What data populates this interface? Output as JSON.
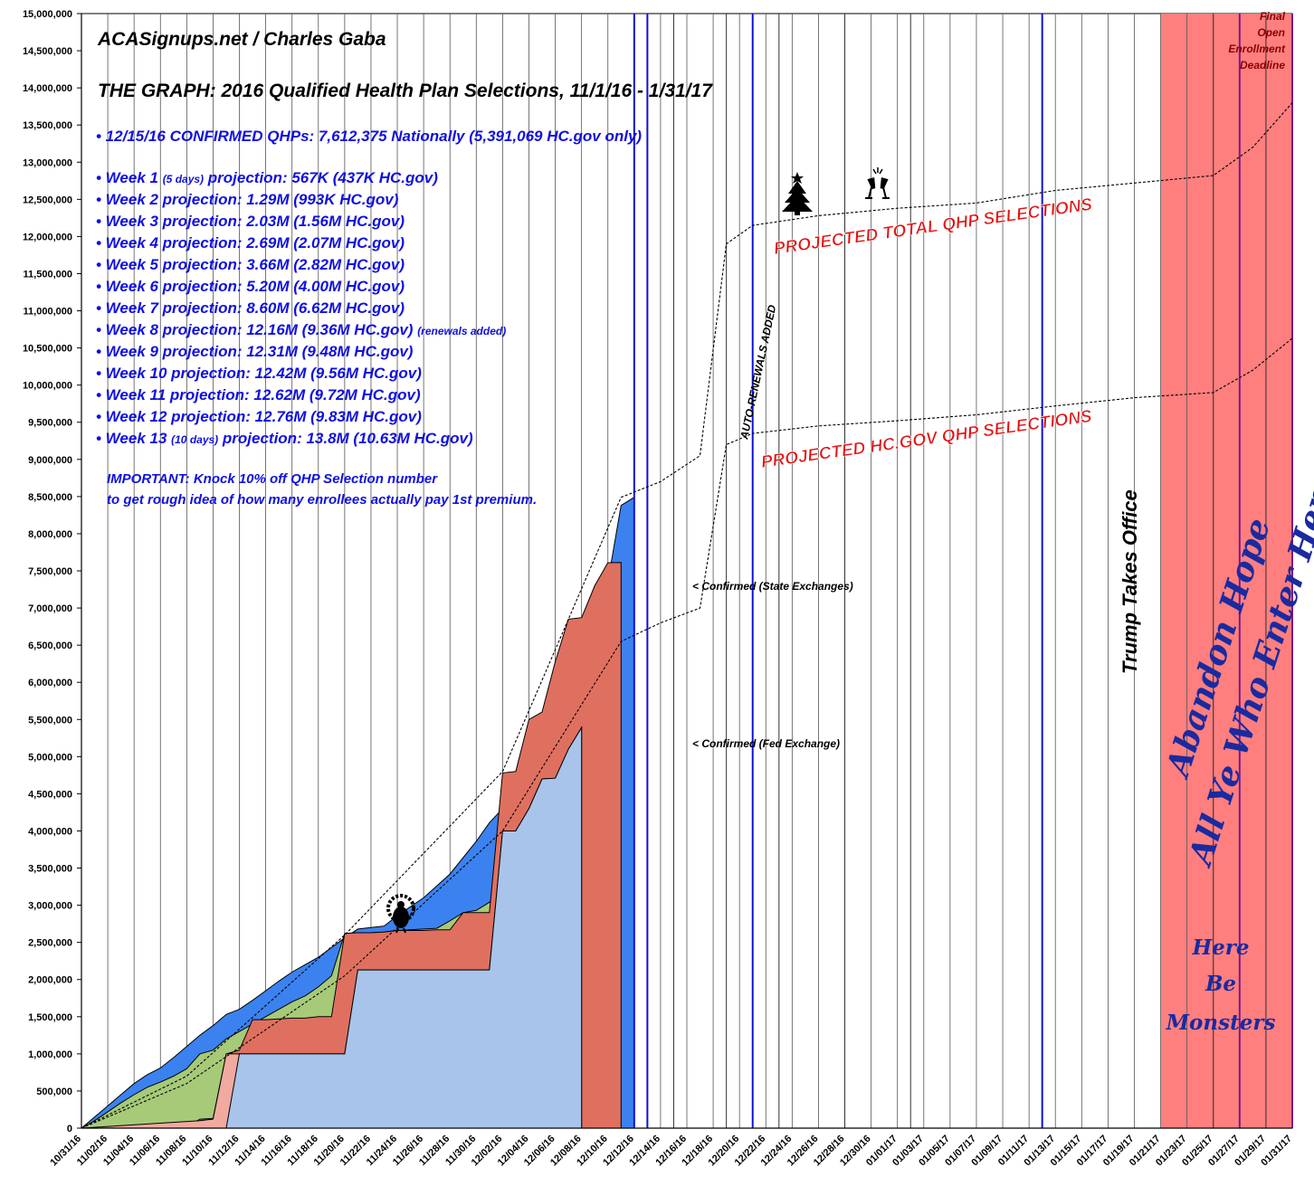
{
  "texts": {
    "source": "ACASignups.net / Charles Gaba",
    "title": "THE GRAPH: 2016 Qualified Health Plan Selections, 11/1/16 - 1/31/17",
    "confirmed": "• 12/15/16 CONFIRMED QHPs: 7,612,375 Nationally (5,391,069 HC.gov only)",
    "weeks": [
      {
        "pre": "• Week 1 ",
        "small": "(5 days)",
        "post": " projection: 567K (437K HC.gov)"
      },
      {
        "pre": "• Week 2 projection: 1.29M (993K HC.gov)",
        "small": "",
        "post": ""
      },
      {
        "pre": "• Week 3 projection: 2.03M (1.56M HC.gov)",
        "small": "",
        "post": ""
      },
      {
        "pre": "• Week 4 projection: 2.69M (2.07M HC.gov)",
        "small": "",
        "post": ""
      },
      {
        "pre": "• Week 5 projection: 3.66M (2.82M HC.gov)",
        "small": "",
        "post": ""
      },
      {
        "pre": "• Week 6 projection: 5.20M (4.00M HC.gov)",
        "small": "",
        "post": ""
      },
      {
        "pre": "• Week 7 projection: 8.60M (6.62M HC.gov)",
        "small": "",
        "post": ""
      },
      {
        "pre": "• Week 8 projection: 12.16M (9.36M HC.gov) ",
        "small": "(renewals added)",
        "post": ""
      },
      {
        "pre": "• Week 9 projection: 12.31M (9.48M HC.gov)",
        "small": "",
        "post": ""
      },
      {
        "pre": "• Week 10 projection: 12.42M (9.56M HC.gov)",
        "small": "",
        "post": ""
      },
      {
        "pre": "• Week 11 projection: 12.62M (9.72M HC.gov)",
        "small": "",
        "post": ""
      },
      {
        "pre": "• Week 12 projection: 12.76M (9.83M HC.gov)",
        "small": "",
        "post": ""
      },
      {
        "pre": "• Week 13 ",
        "small": "(10 days)",
        "post": " projection: 13.8M (10.63M HC.gov)"
      }
    ],
    "important1": "IMPORTANT: Knock 10% off QHP Selection number",
    "important2": "to get rough idea of how many enrollees actually pay 1st premium.",
    "proj_total": "PROJECTED TOTAL QHP SELECTIONS",
    "proj_hcgov": "PROJECTED HC.GOV QHP SELECTIONS",
    "auto_renewals": "AUTO-RENEWALS ADDED",
    "state_ex": "< Confirmed (State Exchanges)",
    "fed_ex": "< Confirmed (Fed Exchange)",
    "trump": "Trump Takes Office",
    "deadline": [
      "Final",
      "Open",
      "Enrollment",
      "Deadline"
    ],
    "abandon1": "Abandon Hope",
    "abandon2": "All Ye Who Enter Here",
    "monsters": [
      "Here",
      "Be",
      "Monsters"
    ]
  },
  "chart_data": {
    "type": "area",
    "ylim": [
      0,
      15000000
    ],
    "ytick_step": 500000,
    "x_start": "10/31/16",
    "x_end": "01/31/17",
    "xtick_labels": [
      "10/31/16",
      "11/02/16",
      "11/04/16",
      "11/06/16",
      "11/08/16",
      "11/10/16",
      "11/12/16",
      "11/14/16",
      "11/16/16",
      "11/18/16",
      "11/20/16",
      "11/22/16",
      "11/24/16",
      "11/26/16",
      "11/28/16",
      "11/30/16",
      "12/02/16",
      "12/04/16",
      "12/06/16",
      "12/08/16",
      "12/10/16",
      "12/12/16",
      "12/14/16",
      "12/16/16",
      "12/18/16",
      "12/20/16",
      "12/22/16",
      "12/24/16",
      "12/26/16",
      "12/28/16",
      "12/30/16",
      "01/01/17",
      "01/03/17",
      "01/05/17",
      "01/07/17",
      "01/09/17",
      "01/11/17",
      "01/13/17",
      "01/15/17",
      "01/17/17",
      "01/19/17",
      "01/21/17",
      "01/23/17",
      "01/25/17",
      "01/27/17",
      "01/29/17",
      "01/31/17"
    ],
    "series": [
      {
        "color": "#3b82f0",
        "points": [
          [
            0,
            0
          ],
          [
            1,
            150000
          ],
          [
            2,
            300000
          ],
          [
            3,
            450000
          ],
          [
            4,
            600000
          ],
          [
            5,
            720000
          ],
          [
            6,
            810000
          ],
          [
            7,
            950000
          ],
          [
            8,
            1100000
          ],
          [
            9,
            1250000
          ],
          [
            10,
            1380000
          ],
          [
            11,
            1530000
          ],
          [
            12,
            1600000
          ],
          [
            13,
            1720000
          ],
          [
            14,
            1850000
          ],
          [
            15,
            1980000
          ],
          [
            16,
            2100000
          ],
          [
            17,
            2200000
          ],
          [
            18,
            2300000
          ],
          [
            19,
            2430000
          ],
          [
            20,
            2560000
          ],
          [
            21,
            2680000
          ],
          [
            22,
            2700000
          ],
          [
            23,
            2720000
          ],
          [
            24,
            2860000
          ],
          [
            25,
            2980000
          ],
          [
            26,
            3100000
          ],
          [
            27,
            3260000
          ],
          [
            28,
            3420000
          ],
          [
            29,
            3640000
          ],
          [
            30,
            3860000
          ],
          [
            31,
            4110000
          ],
          [
            32,
            4300000
          ],
          [
            33,
            4520000
          ],
          [
            34,
            4750000
          ],
          [
            35,
            4980000
          ],
          [
            36,
            5180000
          ],
          [
            37,
            5450000
          ],
          [
            38,
            5780000
          ],
          [
            39,
            6350000
          ],
          [
            40,
            7350000
          ],
          [
            41,
            8380000
          ],
          [
            42,
            8490000
          ]
        ]
      },
      {
        "color": "#a6ca78",
        "points": [
          [
            0,
            0
          ],
          [
            1,
            100000
          ],
          [
            2,
            220000
          ],
          [
            3,
            340000
          ],
          [
            4,
            450000
          ],
          [
            5,
            550000
          ],
          [
            6,
            620000
          ],
          [
            7,
            700000
          ],
          [
            8,
            800000
          ],
          [
            9,
            1000000
          ],
          [
            10,
            1050000
          ],
          [
            11,
            1200000
          ],
          [
            12,
            1300000
          ],
          [
            13,
            1400000
          ],
          [
            14,
            1500000
          ],
          [
            15,
            1600000
          ],
          [
            16,
            1700000
          ],
          [
            17,
            1780000
          ],
          [
            18,
            1900000
          ],
          [
            19,
            2050000
          ],
          [
            20,
            2620000
          ],
          [
            21,
            2630000
          ],
          [
            22,
            2630000
          ],
          [
            23,
            2640000
          ],
          [
            24,
            2660000
          ],
          [
            25,
            2670000
          ],
          [
            26,
            2680000
          ],
          [
            27,
            2690000
          ],
          [
            28,
            2790000
          ],
          [
            29,
            2900000
          ],
          [
            30,
            2930000
          ],
          [
            31,
            3040000
          ],
          [
            32,
            3200000
          ],
          [
            33,
            3400000
          ],
          [
            34,
            3600000
          ],
          [
            35,
            3800000
          ],
          [
            36,
            4000000
          ],
          [
            37,
            4000000
          ]
        ]
      },
      {
        "color": "#df7060",
        "points": [
          [
            0,
            0
          ],
          [
            7,
            10000
          ],
          [
            8,
            20000
          ],
          [
            9,
            120000
          ],
          [
            10,
            130000
          ],
          [
            11,
            1000000
          ],
          [
            12,
            1050000
          ],
          [
            13,
            1460000
          ],
          [
            14,
            1460000
          ],
          [
            15,
            1470000
          ],
          [
            16,
            1480000
          ],
          [
            17,
            1480000
          ],
          [
            18,
            1500000
          ],
          [
            19,
            1500000
          ],
          [
            20,
            2620000
          ],
          [
            21,
            2630000
          ],
          [
            22,
            2630000
          ],
          [
            23,
            2640000
          ],
          [
            24,
            2660000
          ],
          [
            25,
            2660000
          ],
          [
            26,
            2660000
          ],
          [
            27,
            2670000
          ],
          [
            28,
            2670000
          ],
          [
            29,
            2900000
          ],
          [
            30,
            2900000
          ],
          [
            31,
            2900000
          ],
          [
            32,
            4780000
          ],
          [
            33,
            4800000
          ],
          [
            34,
            5500000
          ],
          [
            35,
            5600000
          ],
          [
            36,
            6280000
          ],
          [
            37,
            6850000
          ],
          [
            38,
            6870000
          ],
          [
            39,
            7300000
          ],
          [
            40,
            7610000
          ],
          [
            41,
            7612375
          ]
        ]
      },
      {
        "color": "#f0aaa0",
        "points": [
          [
            0,
            0
          ],
          [
            9,
            100000
          ],
          [
            10,
            120000
          ],
          [
            11,
            1000000
          ],
          [
            12,
            1000000
          ],
          [
            20,
            1000000
          ],
          [
            21,
            2130000
          ],
          [
            22,
            2130000
          ],
          [
            31,
            2130000
          ],
          [
            32,
            4000000
          ],
          [
            33,
            4000000
          ],
          [
            34,
            4300000
          ],
          [
            35,
            4700000
          ],
          [
            36,
            4710000
          ],
          [
            37,
            5100000
          ],
          [
            38,
            5391069
          ]
        ]
      },
      {
        "color": "#a8c4ea",
        "points": [
          [
            0,
            0
          ],
          [
            11,
            0
          ],
          [
            12,
            1000000
          ],
          [
            20,
            1000000
          ],
          [
            21,
            2130000
          ],
          [
            31,
            2130000
          ],
          [
            32,
            4000000
          ],
          [
            33,
            4000000
          ],
          [
            34,
            4300000
          ],
          [
            35,
            4700000
          ],
          [
            36,
            4710000
          ],
          [
            37,
            5100000
          ],
          [
            38,
            5391069
          ]
        ]
      }
    ],
    "projection_total": [
      [
        0,
        0
      ],
      [
        8,
        700000
      ],
      [
        20,
        2600000
      ],
      [
        32,
        4800000
      ],
      [
        41,
        8490000
      ],
      [
        44,
        8700000
      ],
      [
        47,
        9050000
      ],
      [
        49,
        11900000
      ],
      [
        51,
        12150000
      ],
      [
        56,
        12280000
      ],
      [
        62,
        12380000
      ],
      [
        68,
        12450000
      ],
      [
        74,
        12620000
      ],
      [
        80,
        12720000
      ],
      [
        86,
        12820000
      ],
      [
        89,
        13200000
      ],
      [
        92,
        13800000
      ]
    ],
    "projection_hcgov": [
      [
        0,
        0
      ],
      [
        8,
        600000
      ],
      [
        20,
        2050000
      ],
      [
        32,
        4000000
      ],
      [
        41,
        6550000
      ],
      [
        44,
        6800000
      ],
      [
        47,
        7000000
      ],
      [
        49,
        9200000
      ],
      [
        51,
        9350000
      ],
      [
        56,
        9450000
      ],
      [
        62,
        9520000
      ],
      [
        68,
        9600000
      ],
      [
        74,
        9720000
      ],
      [
        80,
        9830000
      ],
      [
        86,
        9900000
      ],
      [
        89,
        10200000
      ],
      [
        92,
        10630000
      ]
    ],
    "vlines_blue": [
      42,
      43,
      51,
      73,
      92
    ],
    "vlines_dark": [
      45,
      49,
      53,
      58,
      63,
      86,
      90
    ],
    "red_zone_from_day": 82
  }
}
